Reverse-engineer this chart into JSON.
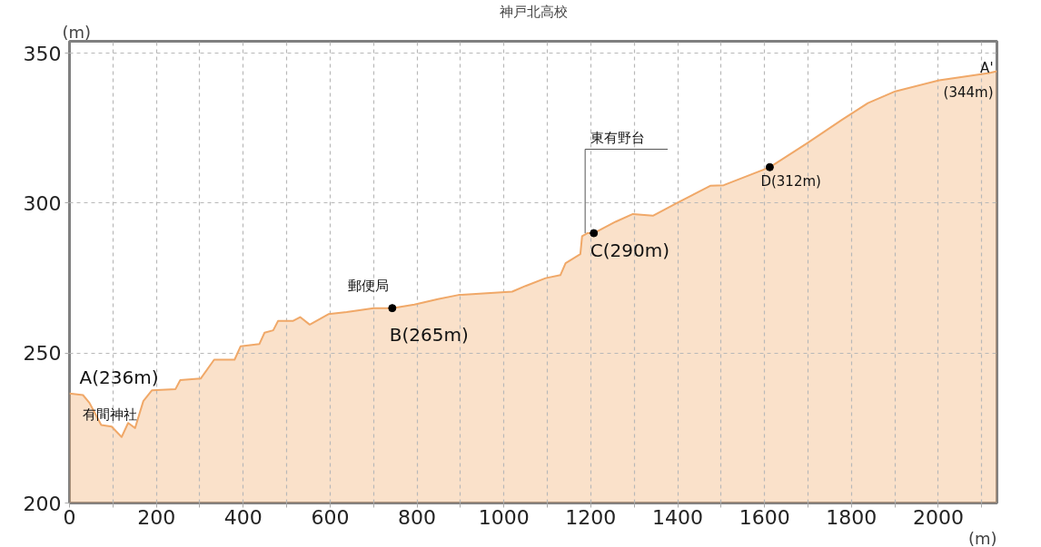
{
  "chart_data": {
    "type": "area",
    "xlabel": "(m)",
    "ylabel": "(m)",
    "xlim": [
      0,
      2135
    ],
    "ylim": [
      200,
      354
    ],
    "xticks": [
      0,
      {
        "value": 100,
        "label": null
      },
      200,
      {
        "value": 300,
        "label": null
      },
      400,
      {
        "value": 500,
        "label": null
      },
      600,
      {
        "value": 700,
        "label": null
      },
      800,
      {
        "value": 900,
        "label": null
      },
      1000,
      {
        "value": 1100,
        "label": null
      },
      1200,
      {
        "value": 1300,
        "label": null
      },
      1400,
      {
        "value": 1500,
        "label": null
      },
      1600,
      {
        "value": 1700,
        "label": null
      },
      1800,
      {
        "value": 1900,
        "label": null
      },
      2000,
      {
        "value": 2100,
        "label": null
      }
    ],
    "yticks": [
      200,
      250,
      300,
      350
    ],
    "grid": true,
    "line_style": "solid",
    "series": [
      {
        "color": "#f0a868",
        "x": [
          0,
          31,
          46,
          73,
          97,
          120,
          135,
          151,
          170,
          190,
          244,
          255,
          302,
          333,
          380,
          394,
          437,
          449,
          469,
          480,
          514,
          531,
          553,
          596,
          638,
          700,
          743,
          794,
          848,
          896,
          1019,
          1050,
          1096,
          1130,
          1142,
          1176,
          1180,
          1192,
          1207,
          1257,
          1297,
          1343,
          1398,
          1475,
          1506,
          1612,
          1698,
          1778,
          1838,
          1901,
          2002,
          2117,
          2135
        ],
        "values": [
          236.5,
          236,
          233.4,
          226,
          225.5,
          222,
          226.7,
          225,
          234,
          237.6,
          238,
          241,
          241.5,
          247.8,
          247.8,
          252.3,
          253,
          256.8,
          257.6,
          260.7,
          260.7,
          262,
          259.5,
          263,
          263.7,
          265,
          265,
          266.2,
          268,
          269.4,
          270.5,
          272.4,
          275,
          276,
          280,
          283,
          289,
          290,
          290,
          293.8,
          296.4,
          295.8,
          300,
          305.8,
          306,
          312,
          320,
          327.8,
          333.4,
          337.3,
          341,
          343.4,
          344
        ]
      },
      {
        "type": "scatter",
        "color": "#000000",
        "marker": "circle",
        "x": [
          743,
          1207,
          1612
        ],
        "values": [
          265,
          290,
          312
        ]
      }
    ],
    "annotations": [
      {
        "text": "A(236m)",
        "x": 0,
        "y": 236
      },
      {
        "text": "有間神社",
        "x": 120,
        "y": 222
      },
      {
        "text": "郵便局",
        "x": 743,
        "y": 265
      },
      {
        "text": "B(265m)",
        "x": 743,
        "y": 265
      },
      {
        "text": "東有野台",
        "x": 1187,
        "y": 290
      },
      {
        "text": "C(290m)",
        "x": 1207,
        "y": 290
      },
      {
        "text": "D(312m)",
        "x": 1612,
        "y": 312
      },
      {
        "text": "A'",
        "x": 2135,
        "y": 344
      },
      {
        "text": "(344m)",
        "x": 2135,
        "y": 344
      },
      "神戸北高校"
    ]
  }
}
